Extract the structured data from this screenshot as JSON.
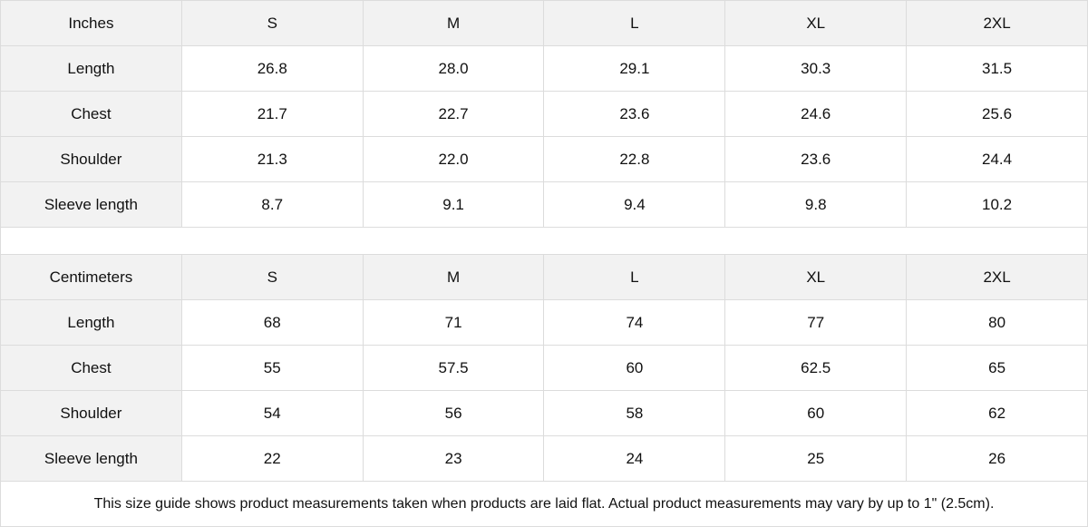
{
  "tables": [
    {
      "unit": "Inches",
      "sizes": [
        "S",
        "M",
        "L",
        "XL",
        "2XL"
      ],
      "rows": [
        {
          "label": "Length",
          "values": [
            "26.8",
            "28.0",
            "29.1",
            "30.3",
            "31.5"
          ]
        },
        {
          "label": "Chest",
          "values": [
            "21.7",
            "22.7",
            "23.6",
            "24.6",
            "25.6"
          ]
        },
        {
          "label": "Shoulder",
          "values": [
            "21.3",
            "22.0",
            "22.8",
            "23.6",
            "24.4"
          ]
        },
        {
          "label": "Sleeve length",
          "values": [
            "8.7",
            "9.1",
            "9.4",
            "9.8",
            "10.2"
          ]
        }
      ]
    },
    {
      "unit": "Centimeters",
      "sizes": [
        "S",
        "M",
        "L",
        "XL",
        "2XL"
      ],
      "rows": [
        {
          "label": "Length",
          "values": [
            "68",
            "71",
            "74",
            "77",
            "80"
          ]
        },
        {
          "label": "Chest",
          "values": [
            "55",
            "57.5",
            "60",
            "62.5",
            "65"
          ]
        },
        {
          "label": "Shoulder",
          "values": [
            "54",
            "56",
            "58",
            "60",
            "62"
          ]
        },
        {
          "label": "Sleeve length",
          "values": [
            "22",
            "23",
            "24",
            "25",
            "26"
          ]
        }
      ]
    }
  ],
  "footnote": "This size guide shows product measurements taken when products are laid flat.  Actual product measurements may vary by up to 1\" (2.5cm).",
  "colors": {
    "header_bg": "#f2f2f2",
    "border": "#dcdcdc"
  }
}
